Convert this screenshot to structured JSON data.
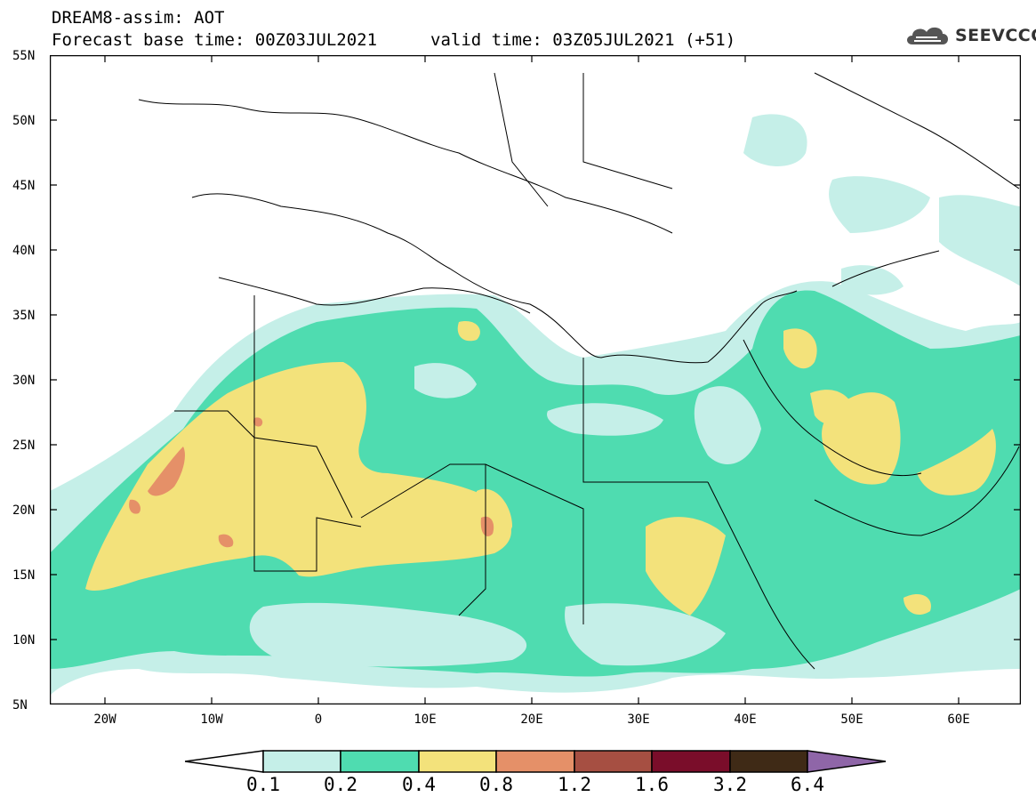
{
  "title": {
    "line1": "DREAM8-assim: AOT",
    "base_time": "Forecast base time: 00Z03JUL2021",
    "valid_time": "valid time: 03Z05JUL2021 (+51)"
  },
  "logo": {
    "text": "SEEVCCC",
    "icon": "cloud-icon"
  },
  "map": {
    "variable": "AOT",
    "y_ticks": [
      "55N",
      "50N",
      "45N",
      "40N",
      "35N",
      "30N",
      "25N",
      "20N",
      "15N",
      "10N",
      "5N"
    ],
    "x_ticks": [
      "20W",
      "10W",
      "0",
      "10E",
      "20E",
      "30E",
      "40E",
      "50E",
      "60E"
    ]
  },
  "colorbar": {
    "levels": [
      "0.1",
      "0.2",
      "0.4",
      "0.8",
      "1.2",
      "1.6",
      "3.2",
      "6.4"
    ],
    "colors": [
      "#ffffff",
      "#c5efe8",
      "#4fdcb0",
      "#f3e27b",
      "#e59068",
      "#a64f42",
      "#7a0d2a",
      "#3f2a16",
      "#8f66a8"
    ]
  }
}
